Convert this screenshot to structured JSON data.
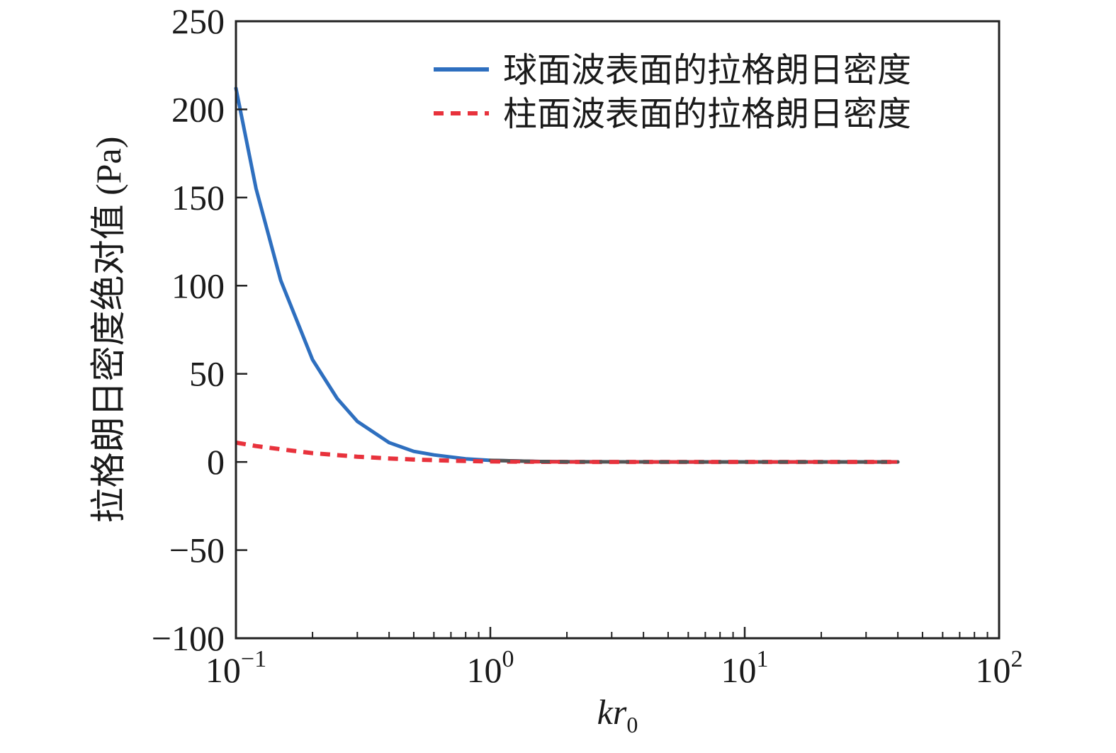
{
  "chart_data": {
    "type": "line",
    "title": "",
    "xlabel": "kr0",
    "xlabel_main": "kr",
    "xlabel_sub": "0",
    "ylabel": "拉格朗日密度绝对值 (Pa)",
    "x_scale": "log",
    "xlim": [
      0.1,
      100
    ],
    "ylim": [
      -100,
      250
    ],
    "x_ticks": [
      {
        "value": 0.1,
        "base": "10",
        "exp": "−1"
      },
      {
        "value": 1,
        "base": "10",
        "exp": "0"
      },
      {
        "value": 10,
        "base": "10",
        "exp": "1"
      },
      {
        "value": 100,
        "base": "10",
        "exp": "2"
      }
    ],
    "y_ticks": [
      {
        "value": 250,
        "label": "250"
      },
      {
        "value": 200,
        "label": "200"
      },
      {
        "value": 150,
        "label": "150"
      },
      {
        "value": 100,
        "label": "100"
      },
      {
        "value": 50,
        "label": "50"
      },
      {
        "value": 0,
        "label": "0"
      },
      {
        "value": -50,
        "label": "−50"
      },
      {
        "value": -100,
        "label": "−100"
      }
    ],
    "grid": false,
    "legend_position": "top-right",
    "series": [
      {
        "name": "球面波表面的拉格朗日密度",
        "color": "#2e6fbf",
        "style": "solid",
        "x": [
          0.1,
          0.12,
          0.15,
          0.2,
          0.25,
          0.3,
          0.4,
          0.5,
          0.6,
          0.8,
          1.0,
          1.5,
          2,
          5,
          10,
          20,
          40
        ],
        "y": [
          212,
          155,
          103,
          58,
          36,
          23,
          11,
          6,
          4,
          1.8,
          0.9,
          0.3,
          0.1,
          0,
          0,
          0,
          0
        ]
      },
      {
        "name": "柱面波表面的拉格朗日密度",
        "color": "#e8323c",
        "style": "dashed",
        "x": [
          0.1,
          0.12,
          0.15,
          0.2,
          0.3,
          0.4,
          0.5,
          0.7,
          1.0,
          1.5,
          2,
          5,
          10,
          20,
          40
        ],
        "y": [
          11,
          9,
          7.2,
          5,
          3,
          2,
          1.4,
          0.7,
          0.3,
          0.1,
          0,
          0,
          0,
          0,
          0
        ]
      }
    ]
  }
}
